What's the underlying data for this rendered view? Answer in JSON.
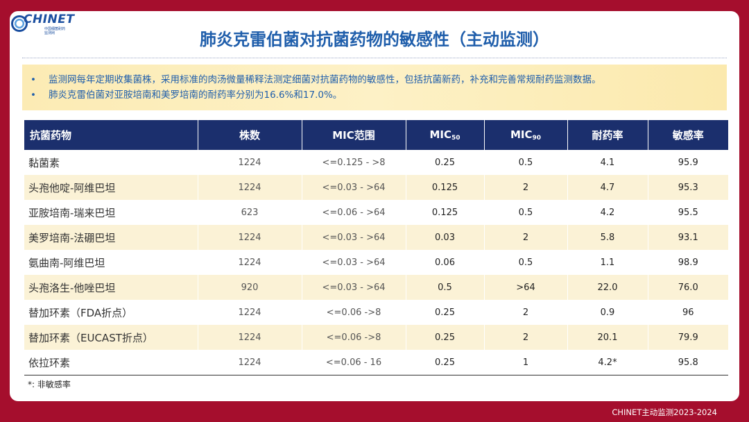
{
  "logo": {
    "name": "CHINET",
    "subtitle_line1": "中国细菌耐药",
    "subtitle_line2": "监测网"
  },
  "title": "肺炎克雷伯菌对抗菌药物的敏感性（主动监测）",
  "bullets": [
    "监测网每年定期收集菌株，采用标准的肉汤微量稀释法测定细菌对抗菌药物的敏感性，包括抗菌新药，补充和完善常规耐药监测数据。",
    "肺炎克雷伯菌对亚胺培南和美罗培南的耐药率分别为16.6%和17.0%。"
  ],
  "bullet_marker": "•",
  "table": {
    "headers": {
      "drug": "抗菌药物",
      "count": "株数",
      "mic_range": "MIC范围",
      "mic50_base": "MIC",
      "mic50_sub": "50",
      "mic90_base": "MIC",
      "mic90_sub": "90",
      "resistance": "耐药率",
      "sensitivity": "敏感率"
    },
    "rows": [
      {
        "drug": "黏菌素",
        "count": "1224",
        "range": "<=0.125 - >8",
        "mic50": "0.25",
        "mic90": "0.5",
        "resistance": "4.1",
        "sensitivity": "95.9"
      },
      {
        "drug": "头孢他啶-阿维巴坦",
        "count": "1224",
        "range": "<=0.03 - >64",
        "mic50": "0.125",
        "mic90": "2",
        "resistance": "4.7",
        "sensitivity": "95.3"
      },
      {
        "drug": "亚胺培南-瑞来巴坦",
        "count": "623",
        "range": "<=0.06 - >64",
        "mic50": "0.125",
        "mic90": "0.5",
        "resistance": "4.2",
        "sensitivity": "95.5"
      },
      {
        "drug": "美罗培南-法硼巴坦",
        "count": "1224",
        "range": "<=0.03 - >64",
        "mic50": "0.03",
        "mic90": "2",
        "resistance": "5.8",
        "sensitivity": "93.1"
      },
      {
        "drug": "氨曲南-阿维巴坦",
        "count": "1224",
        "range": "<=0.03 - >64",
        "mic50": "0.06",
        "mic90": "0.5",
        "resistance": "1.1",
        "sensitivity": "98.9"
      },
      {
        "drug": "头孢洛生-他唑巴坦",
        "count": "920",
        "range": "<=0.03 - >64",
        "mic50": "0.5",
        "mic90": ">64",
        "resistance": "22.0",
        "sensitivity": "76.0"
      },
      {
        "drug": "替加环素（FDA折点）",
        "count": "1224",
        "range": "<=0.06 ->8",
        "mic50": "0.25",
        "mic90": "2",
        "resistance": "0.9",
        "sensitivity": "96"
      },
      {
        "drug": "替加环素（EUCAST折点）",
        "count": "1224",
        "range": "<=0.06 ->8",
        "mic50": "0.25",
        "mic90": "2",
        "resistance": "20.1",
        "sensitivity": "79.9"
      },
      {
        "drug": "依拉环素",
        "count": "1224",
        "range": "<=0.06 - 16",
        "mic50": "0.25",
        "mic90": "1",
        "resistance": "4.2*",
        "sensitivity": "95.8"
      }
    ]
  },
  "footnote": "*: 非敏感率",
  "footer": "CHINET主动监测2023-2024",
  "colors": {
    "background": "#a50e2d",
    "title": "#1f5eab",
    "header_bg": "#1b2f6d",
    "stripe": "#fbf2d6",
    "bullet_box": "#fcebb4"
  }
}
